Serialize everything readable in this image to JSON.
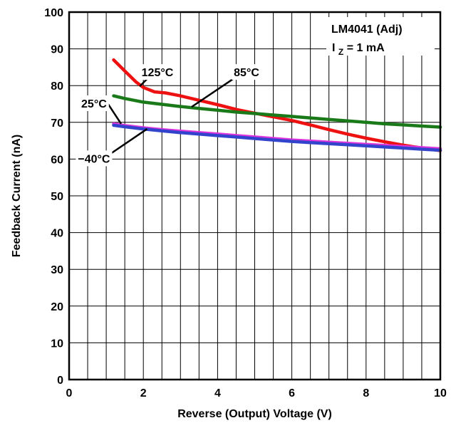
{
  "chart_data": {
    "type": "line",
    "xlabel": "Reverse (Output) Voltage (V)",
    "ylabel": "Feedback Current (nA)",
    "xlim": [
      0,
      10
    ],
    "ylim": [
      0,
      100
    ],
    "x_ticks": [
      0,
      2,
      4,
      6,
      8,
      10
    ],
    "y_ticks": [
      0,
      10,
      20,
      30,
      40,
      50,
      60,
      70,
      80,
      90,
      100
    ],
    "x_minor_step": 0.5,
    "grid": true,
    "annotation": {
      "part": "LM4041 (Adj)",
      "condition_prefix": "I",
      "condition_sub": "Z",
      "condition_suffix": " = 1 mA"
    },
    "series": [
      {
        "name": "125°C",
        "color": "#ee1111",
        "points": [
          [
            1.2,
            87
          ],
          [
            1.5,
            84
          ],
          [
            1.8,
            81
          ],
          [
            2.0,
            79.5
          ],
          [
            2.3,
            78.3
          ],
          [
            2.6,
            78
          ],
          [
            3.0,
            77.2
          ],
          [
            3.5,
            76.0
          ],
          [
            4.0,
            74.8
          ],
          [
            4.5,
            73.5
          ],
          [
            5.0,
            72.5
          ],
          [
            5.5,
            71.5
          ],
          [
            6.0,
            70.5
          ],
          [
            6.5,
            69.3
          ],
          [
            7.0,
            68.0
          ],
          [
            7.5,
            66.8
          ],
          [
            8.0,
            65.7
          ],
          [
            8.5,
            64.7
          ],
          [
            9.0,
            63.8
          ],
          [
            9.5,
            63.0
          ],
          [
            10.0,
            62.3
          ]
        ]
      },
      {
        "name": "85°C",
        "color": "#1a7a1a",
        "points": [
          [
            1.2,
            77.2
          ],
          [
            1.5,
            76.5
          ],
          [
            2.0,
            75.5
          ],
          [
            2.5,
            74.9
          ],
          [
            3.0,
            74.3
          ],
          [
            3.5,
            73.8
          ],
          [
            4.0,
            73.3
          ],
          [
            4.5,
            72.8
          ],
          [
            5.0,
            72.4
          ],
          [
            5.5,
            72.0
          ],
          [
            6.0,
            71.6
          ],
          [
            6.5,
            71.2
          ],
          [
            7.0,
            70.8
          ],
          [
            7.5,
            70.4
          ],
          [
            8.0,
            70.0
          ],
          [
            8.5,
            69.6
          ],
          [
            9.0,
            69.3
          ],
          [
            9.5,
            69.0
          ],
          [
            10.0,
            68.7
          ]
        ]
      },
      {
        "name": "25°C",
        "color": "#dd33dd",
        "points": [
          [
            1.2,
            69.6
          ],
          [
            1.5,
            69.1
          ],
          [
            2.0,
            68.5
          ],
          [
            2.5,
            68.0
          ],
          [
            3.0,
            67.6
          ],
          [
            3.5,
            67.2
          ],
          [
            4.0,
            66.8
          ],
          [
            4.5,
            66.4
          ],
          [
            5.0,
            66.0
          ],
          [
            5.5,
            65.6
          ],
          [
            6.0,
            65.2
          ],
          [
            6.5,
            64.9
          ],
          [
            7.0,
            64.6
          ],
          [
            7.5,
            64.3
          ],
          [
            8.0,
            64.0
          ],
          [
            8.5,
            63.7
          ],
          [
            9.0,
            63.4
          ],
          [
            9.5,
            63.1
          ],
          [
            10.0,
            62.8
          ]
        ]
      },
      {
        "name": "−40°C",
        "color": "#3344cc",
        "points": [
          [
            1.2,
            69.2
          ],
          [
            1.5,
            68.8
          ],
          [
            2.0,
            68.2
          ],
          [
            2.5,
            67.7
          ],
          [
            3.0,
            67.2
          ],
          [
            3.5,
            66.8
          ],
          [
            4.0,
            66.4
          ],
          [
            4.5,
            66.0
          ],
          [
            5.0,
            65.6
          ],
          [
            5.5,
            65.2
          ],
          [
            6.0,
            64.8
          ],
          [
            6.5,
            64.5
          ],
          [
            7.0,
            64.2
          ],
          [
            7.5,
            63.9
          ],
          [
            8.0,
            63.6
          ],
          [
            8.5,
            63.3
          ],
          [
            9.0,
            63.0
          ],
          [
            9.5,
            62.7
          ],
          [
            10.0,
            62.4
          ]
        ]
      }
    ],
    "series_labels": [
      {
        "text": "125°C",
        "at": [
          2.38,
          83.7
        ],
        "leader_from": [
          1.9,
          79.8
        ],
        "leader_to": [
          2.42,
          85.0
        ]
      },
      {
        "text": "85°C",
        "at": [
          4.78,
          83.7
        ],
        "leader_from": [
          3.3,
          74.2
        ],
        "leader_to": [
          4.52,
          82.5
        ]
      },
      {
        "text": "25°C",
        "at": [
          0.67,
          75.2
        ],
        "leader_from": [
          1.05,
          75.0
        ],
        "leader_to": [
          1.4,
          69.6
        ]
      },
      {
        "text": "−40°C",
        "at": [
          0.67,
          60.2
        ],
        "leader_from": [
          1.05,
          61.0
        ],
        "leader_to": [
          2.1,
          68.2
        ]
      }
    ]
  }
}
